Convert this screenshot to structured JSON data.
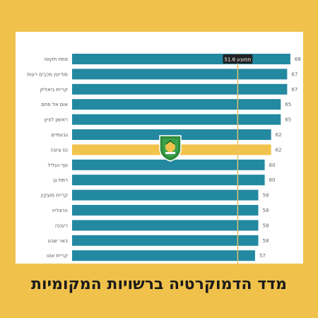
{
  "chart_data": {
    "type": "bar",
    "orientation": "horizontal",
    "categories": [
      "פתח תקווה",
      "מודיעין מכבים רעות",
      "קריית ביאליק",
      "אום אל פחם",
      "ראשון לציון",
      "גבעתיים",
      "נס ציונה",
      "נוף הגליל",
      "רמת גן",
      "קריית מוצקין",
      "הרצליה",
      "רעננה",
      "באר שבע",
      "קריית אונו"
    ],
    "values": [
      68,
      67,
      67,
      65,
      65,
      62,
      62,
      60,
      60,
      58,
      58,
      58,
      58,
      57
    ],
    "highlight_index": 6,
    "average": 51.6,
    "average_label": "ממוצע 51.6",
    "xlim": [
      0,
      70
    ],
    "bar_color": "#2389a0",
    "highlight_color": "#f2c34c",
    "average_line_color": "#e2c26a"
  },
  "caption": "מדד הדמוקרטיה ברשויות המקומיות",
  "emblem_icon": "municipal-emblem-icon",
  "colors": {
    "background": "#f0c24b",
    "card": "#ffffff"
  }
}
